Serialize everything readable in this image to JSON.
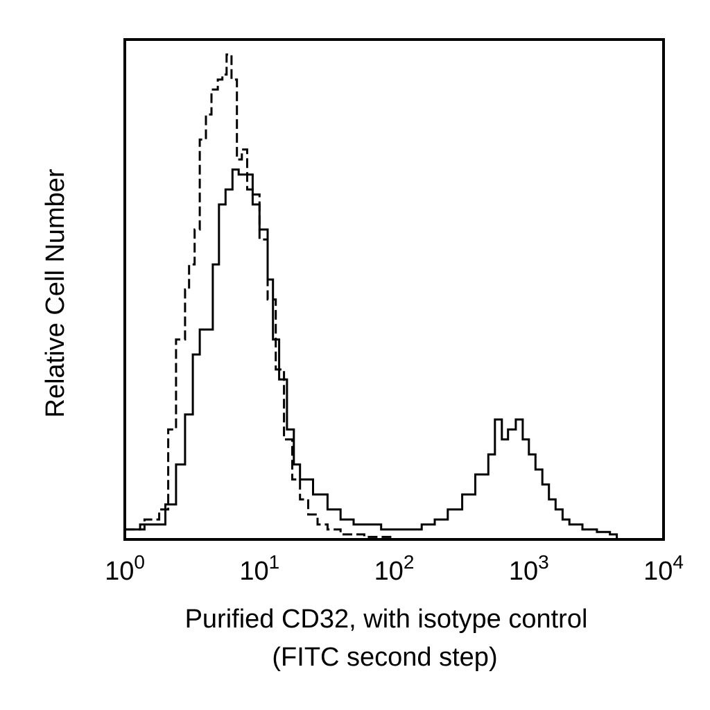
{
  "chart_data": {
    "type": "line",
    "title": "",
    "xlabel_line1": "Purified CD32, with isotype control",
    "xlabel_line2": "(FITC second step)",
    "ylabel": "Relative Cell Number",
    "x_scale": "log",
    "xlim": [
      1,
      10000
    ],
    "ylim": [
      0,
      100
    ],
    "grid": false,
    "legend": "none",
    "x_ticks": [
      {
        "value": 1,
        "base": "10",
        "exp": "0"
      },
      {
        "value": 10,
        "base": "10",
        "exp": "1"
      },
      {
        "value": 100,
        "base": "10",
        "exp": "2"
      },
      {
        "value": 1000,
        "base": "10",
        "exp": "3"
      },
      {
        "value": 10000,
        "base": "10",
        "exp": "4"
      }
    ],
    "series": [
      {
        "style": "dashed",
        "color": "#000000",
        "points": [
          [
            1.0,
            2
          ],
          [
            1.4,
            4
          ],
          [
            1.8,
            6
          ],
          [
            2.1,
            22
          ],
          [
            2.4,
            40
          ],
          [
            2.8,
            50
          ],
          [
            3.0,
            55
          ],
          [
            3.3,
            62
          ],
          [
            3.6,
            80
          ],
          [
            4.0,
            85
          ],
          [
            4.4,
            90
          ],
          [
            4.9,
            92
          ],
          [
            5.3,
            93
          ],
          [
            5.7,
            97
          ],
          [
            6.2,
            92
          ],
          [
            6.8,
            76
          ],
          [
            7.4,
            78
          ],
          [
            8.1,
            70
          ],
          [
            8.9,
            69
          ],
          [
            10.0,
            60
          ],
          [
            11.5,
            48
          ],
          [
            13.2,
            34
          ],
          [
            15.2,
            20
          ],
          [
            17.5,
            12
          ],
          [
            20.0,
            8
          ],
          [
            23.0,
            5
          ],
          [
            27.0,
            3
          ],
          [
            32.0,
            2
          ],
          [
            40.0,
            1
          ],
          [
            60.0,
            0.5
          ],
          [
            100.0,
            0
          ]
        ]
      },
      {
        "style": "solid",
        "color": "#000000",
        "points": [
          [
            1.0,
            2
          ],
          [
            1.3,
            3
          ],
          [
            1.6,
            3
          ],
          [
            2.0,
            7
          ],
          [
            2.4,
            15
          ],
          [
            2.8,
            25
          ],
          [
            3.2,
            37
          ],
          [
            3.6,
            42
          ],
          [
            4.0,
            42
          ],
          [
            4.5,
            55
          ],
          [
            5.0,
            67
          ],
          [
            5.6,
            70
          ],
          [
            6.3,
            74
          ],
          [
            7.0,
            73
          ],
          [
            7.9,
            73
          ],
          [
            8.9,
            67
          ],
          [
            10.0,
            62
          ],
          [
            11.5,
            52
          ],
          [
            12.6,
            40
          ],
          [
            14.0,
            32
          ],
          [
            16.0,
            22
          ],
          [
            18.0,
            15
          ],
          [
            20.0,
            12
          ],
          [
            25.0,
            9
          ],
          [
            32.0,
            6
          ],
          [
            40.0,
            4
          ],
          [
            50.0,
            3
          ],
          [
            63.0,
            3
          ],
          [
            80.0,
            2
          ],
          [
            100.0,
            2
          ],
          [
            126.0,
            2
          ],
          [
            160.0,
            3
          ],
          [
            200.0,
            4
          ],
          [
            250.0,
            6
          ],
          [
            320.0,
            9
          ],
          [
            400.0,
            13
          ],
          [
            500.0,
            17
          ],
          [
            560.0,
            24
          ],
          [
            630.0,
            20
          ],
          [
            700.0,
            22
          ],
          [
            800.0,
            24
          ],
          [
            900.0,
            20
          ],
          [
            1000.0,
            17
          ],
          [
            1120.0,
            14
          ],
          [
            1260.0,
            11
          ],
          [
            1410.0,
            8
          ],
          [
            1580.0,
            6
          ],
          [
            1780.0,
            4
          ],
          [
            2000.0,
            3
          ],
          [
            2500.0,
            2
          ],
          [
            3200.0,
            1.5
          ],
          [
            4000.0,
            1
          ],
          [
            4500.0,
            0
          ]
        ]
      }
    ]
  }
}
